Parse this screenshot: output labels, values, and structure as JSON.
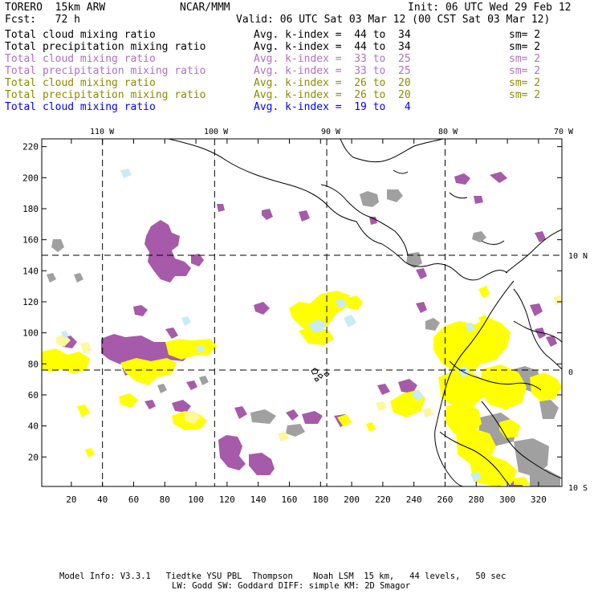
{
  "header": {
    "model": "TORERO  15km ARW",
    "org": "NCAR/MMM",
    "init": "Init: 06 UTC Wed 29 Feb 12",
    "fcst": "Fcst:   72 h",
    "valid": "Valid: 06 UTC Sat 03 Mar 12 (00 CST Sat 03 Mar 12)"
  },
  "legend": [
    {
      "field": "Total cloud mixing ratio",
      "kindex": "Avg. k-index =  44 to  34",
      "sm": "sm= 2",
      "color": "#000000"
    },
    {
      "field": "Total precipitation mixing ratio",
      "kindex": "Avg. k-index =  44 to  34",
      "sm": "sm= 2",
      "color": "#000000"
    },
    {
      "field": "Total cloud mixing ratio",
      "kindex": "Avg. k-index =  33 to  25",
      "sm": "sm= 2",
      "color": "#b070c0"
    },
    {
      "field": "Total precipitation mixing ratio",
      "kindex": "Avg. k-index =  33 to  25",
      "sm": "sm= 2",
      "color": "#b070c0"
    },
    {
      "field": "Total cloud mixing ratio",
      "kindex": "Avg. k-index =  26 to  20",
      "sm": "sm= 2",
      "color": "#8c8c00"
    },
    {
      "field": "Total precipitation mixing ratio",
      "kindex": "Avg. k-index =  26 to  20",
      "sm": "sm= 2",
      "color": "#8c8c00"
    },
    {
      "field": "Total cloud mixing ratio",
      "kindex": "Avg. k-index =  19 to   4",
      "sm": "",
      "color": "#0000ff"
    }
  ],
  "map": {
    "top_labels": [
      "110 W",
      "100 W",
      "90 W",
      "80 W",
      "70 W"
    ],
    "right_labels": [
      "10 N",
      "0",
      "10 S"
    ],
    "y_ticks": [
      20,
      40,
      60,
      80,
      100,
      120,
      140,
      160,
      180,
      200,
      220
    ],
    "x_ticks": [
      20,
      40,
      60,
      80,
      100,
      120,
      140,
      160,
      180,
      200,
      220,
      240,
      260,
      280,
      300,
      320
    ],
    "x_range": [
      1,
      335
    ],
    "y_range": [
      1,
      225
    ],
    "lon_lines_x": [
      40,
      112,
      184,
      260
    ],
    "lat_lines_y": [
      150,
      76
    ],
    "colors": {
      "gray": "#a0a0a0",
      "purple": "#a65aa9",
      "yellow": "#ffff00",
      "light_yellow": "#fff79a",
      "light_blue": "#c8ecf5",
      "coast": "#000000"
    }
  },
  "footer": {
    "line1": "Model Info: V3.3.1   Tiedtke YSU PBL  Thompson    Noah LSM  15 km,   44 levels,   50 sec",
    "line2": "LW: Godd SW: Goddard DIFF: simple KM: 2D Smagor"
  }
}
